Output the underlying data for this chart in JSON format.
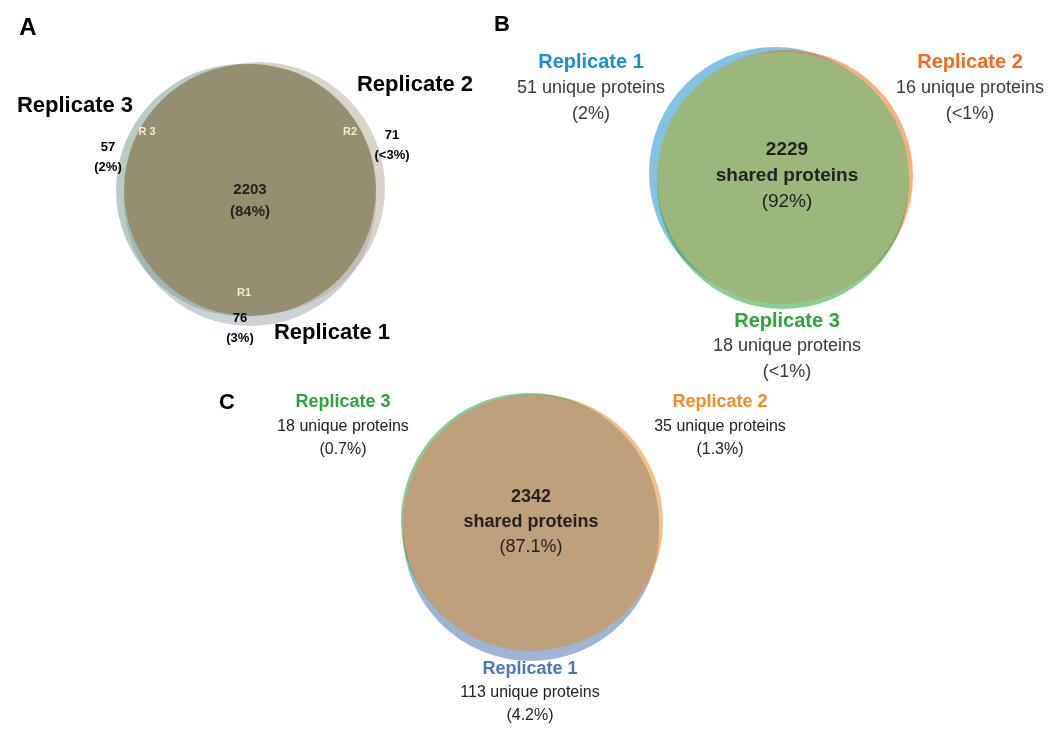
{
  "chart_data": [
    {
      "type": "other",
      "title": "A",
      "categories": [
        "Replicate 1",
        "Replicate 2",
        "Replicate 3"
      ],
      "colors": [
        "#9eabb6",
        "#bcae9c",
        "#7fa096"
      ],
      "values": [
        76,
        71,
        57
      ],
      "value_labels": [
        "76\n(3%)",
        "71\n(<3%)",
        "57\n(2%)"
      ],
      "color": "#958f6f",
      "annotations": [
        "2203\n(84%)",
        "R1",
        "R2",
        "R 3"
      ]
    },
    {
      "type": "other",
      "title": "B",
      "categories": [
        "Replicate 1",
        "Replicate 2",
        "Replicate 3"
      ],
      "colors": [
        "#1a8fcf",
        "#f26b1d",
        "#2aa53a"
      ],
      "values": [
        51,
        16,
        18
      ],
      "value_labels": [
        "51 unique proteins\n(2%)",
        "16 unique proteins\n(<1%)",
        "18 unique proteins\n(<1%)"
      ],
      "color": "#9bb77b",
      "annotations": [
        "2229\nshared proteins\n(92%)"
      ]
    },
    {
      "type": "other",
      "title": "C",
      "categories": [
        "Replicate 1",
        "Replicate 2",
        "Replicate 3"
      ],
      "colors": [
        "#4a78b4",
        "#f58a24",
        "#2aa33a"
      ],
      "values": [
        113,
        35,
        18
      ],
      "value_labels": [
        "113 unique proteins\n(4.2%)",
        "35 unique proteins\n(1.3%)",
        "18 unique proteins\n(0.7%)"
      ],
      "color": "#bfa07d",
      "annotations": [
        "2342\nshared proteins\n(87.1%)"
      ]
    }
  ]
}
